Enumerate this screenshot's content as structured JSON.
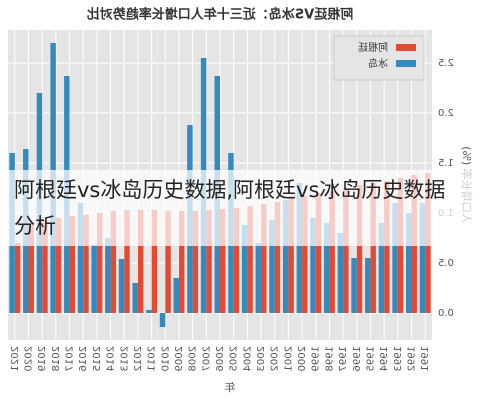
{
  "chart_data": {
    "type": "bar",
    "title": "阿根廷VS冰岛：近三十年人口增长率趋势对比",
    "x_label": "年",
    "y_label": "人口增长率 (%)",
    "categories": [
      "1991",
      "1992",
      "1993",
      "1994",
      "1995",
      "1996",
      "1997",
      "1998",
      "1999",
      "2000",
      "2001",
      "2002",
      "2003",
      "2004",
      "2005",
      "2006",
      "2007",
      "2008",
      "2009",
      "2010",
      "2011",
      "2012",
      "2013",
      "2014",
      "2015",
      "2016",
      "2017",
      "2018",
      "2019",
      "2020",
      "2021"
    ],
    "series": [
      {
        "name": "阿根廷",
        "color": "#e24a33",
        "values": [
          1.4,
          1.38,
          1.35,
          1.32,
          1.3,
          1.28,
          1.25,
          1.22,
          1.2,
          1.17,
          1.14,
          1.11,
          1.09,
          1.07,
          1.05,
          1.04,
          1.03,
          1.02,
          1.02,
          1.02,
          1.03,
          1.03,
          1.03,
          1.02,
          1.0,
          0.98,
          0.97,
          0.95,
          0.93,
          0.9,
          0.7
        ]
      },
      {
        "name": "冰岛",
        "color": "#348abd",
        "values": [
          1.1,
          1.0,
          1.1,
          0.9,
          0.55,
          0.55,
          0.8,
          0.9,
          0.95,
          1.3,
          1.13,
          0.93,
          0.7,
          0.88,
          1.6,
          2.37,
          2.55,
          1.88,
          0.35,
          -0.14,
          0.03,
          0.3,
          0.54,
          0.75,
          0.68,
          1.1,
          2.37,
          2.7,
          2.2,
          1.64,
          1.6
        ]
      }
    ],
    "ylim": [
      -0.27,
      2.83
    ],
    "yticks": [
      {
        "value": 0,
        "label": "0.0"
      },
      0.5,
      {
        "value": 1,
        "label": "1.0"
      },
      1.5,
      {
        "value": 2,
        "label": "2.0"
      },
      2.5
    ],
    "grid": true,
    "legend": "upper left",
    "mirrored": true
  },
  "overlay_text": "阿根廷vs冰岛历史数据,阿根廷vs冰岛历史数据分析"
}
